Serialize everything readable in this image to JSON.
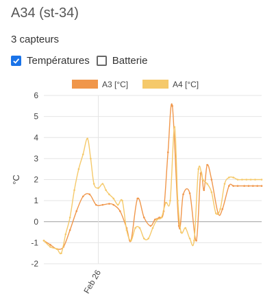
{
  "header": {
    "title": "A34 (st-34)",
    "sensor_count": "3 capteurs"
  },
  "filters": [
    {
      "label": "Températures",
      "checked": true,
      "icon": "check-icon"
    },
    {
      "label": "Batterie",
      "checked": false
    }
  ],
  "colors": {
    "A3": "#f0964a",
    "A4": "#f5c96a",
    "checkbox": "#1a73e8",
    "grid": "#e4e4e4",
    "axis": "#9e9e9e"
  },
  "chart_data": {
    "type": "line",
    "xlabel": "",
    "ylabel": "°C",
    "ylim": [
      -2,
      6
    ],
    "yticks": [
      -2,
      -1,
      0,
      1,
      2,
      3,
      4,
      5,
      6
    ],
    "xlim": [
      0,
      100
    ],
    "xticks": [
      {
        "x": 25,
        "label": "Feb 26"
      }
    ],
    "legend_position": "top",
    "grid": true,
    "series": [
      {
        "name": "A3 [°C]",
        "x": [
          0,
          3,
          6,
          9,
          12,
          15,
          18,
          21,
          24,
          27,
          30,
          32,
          35,
          38,
          40,
          43,
          46,
          49,
          51,
          53,
          55,
          57,
          59,
          62,
          64,
          67,
          70,
          72,
          73.5,
          75,
          77,
          80,
          82,
          85,
          87,
          89,
          92,
          94,
          96,
          98,
          100
        ],
        "y": [
          -0.9,
          -1.1,
          -1.3,
          -1.2,
          -0.4,
          0.5,
          1.2,
          1.3,
          0.8,
          0.8,
          0.85,
          0.8,
          0.5,
          -0.3,
          -0.9,
          1.1,
          0.2,
          -0.2,
          0.1,
          0.2,
          0.5,
          3.3,
          5.5,
          -0.2,
          1.3,
          1.35,
          -0.9,
          2.3,
          1.5,
          2.7,
          2.0,
          0.4,
          0.6,
          1.7,
          1.7,
          1.7,
          1.7,
          1.7,
          1.7,
          1.7,
          1.7
        ]
      },
      {
        "name": "A4 [°C]",
        "x": [
          0,
          3,
          6,
          8,
          10,
          12,
          14,
          16,
          18,
          20,
          21.5,
          23,
          25,
          27,
          28.5,
          30,
          32,
          34,
          36,
          38,
          40,
          42,
          44,
          46,
          48,
          50,
          52,
          54,
          56,
          58,
          60,
          61.5,
          63,
          65,
          67,
          69,
          71,
          73,
          75,
          77,
          79,
          81,
          83,
          85,
          87,
          89,
          91,
          93,
          95,
          97,
          100
        ],
        "y": [
          -0.9,
          -1.2,
          -1.3,
          -1.5,
          -0.6,
          0.2,
          1.5,
          2.5,
          3.2,
          3.95,
          3.0,
          1.8,
          1.6,
          1.8,
          1.5,
          1.3,
          1.1,
          0.8,
          1.0,
          -0.4,
          -0.9,
          -0.3,
          -0.3,
          -0.8,
          -0.8,
          -0.3,
          0.1,
          0.2,
          0.9,
          1.0,
          4.5,
          1.0,
          -0.5,
          -0.3,
          -0.8,
          -0.9,
          2.5,
          2.0,
          1.8,
          1.4,
          0.4,
          0.6,
          1.8,
          2.1,
          2.1,
          2.0,
          2.0,
          2.0,
          2.0,
          2.0,
          2.0
        ]
      }
    ]
  }
}
